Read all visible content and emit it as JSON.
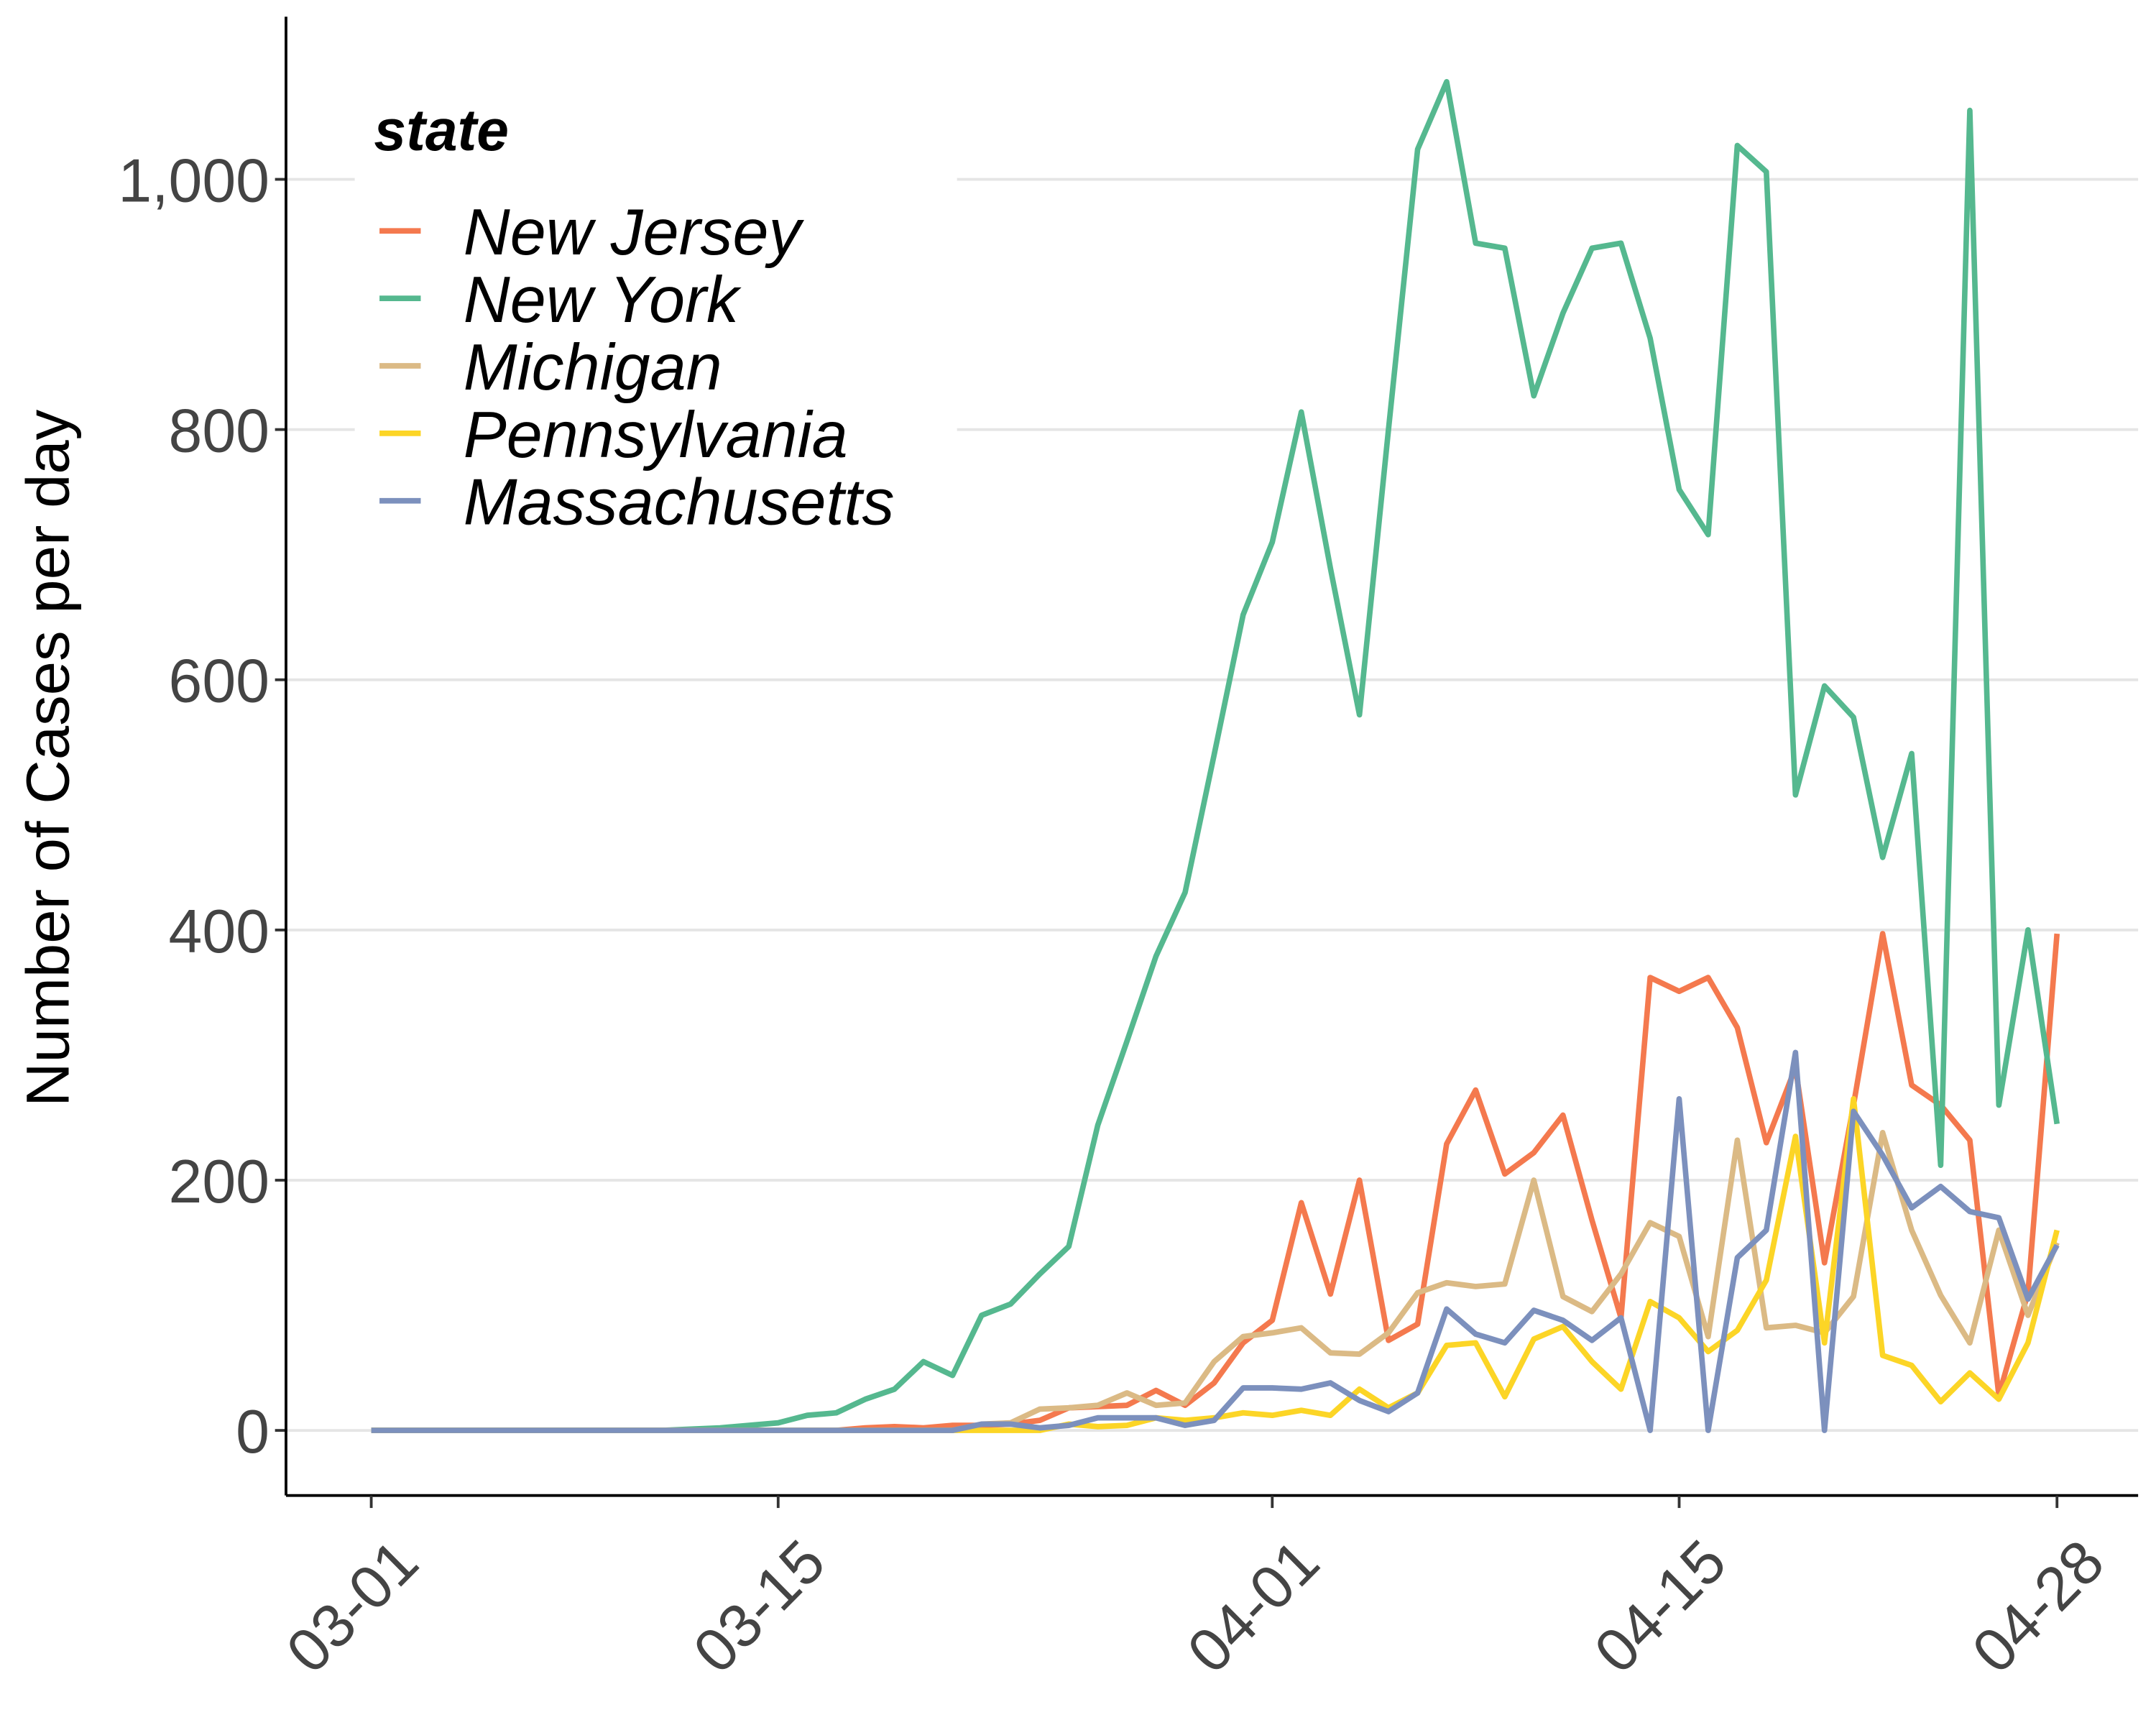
{
  "chart_data": {
    "type": "line",
    "y_label": "Number of Cases per day",
    "legend_title": "state",
    "legend": "top-left",
    "grid": true,
    "categories": [
      "03-01",
      "03-02",
      "03-03",
      "03-04",
      "03-05",
      "03-06",
      "03-07",
      "03-08",
      "03-09",
      "03-10",
      "03-11",
      "03-12",
      "03-13",
      "03-14",
      "03-15",
      "03-16",
      "03-17",
      "03-18",
      "03-19",
      "03-20",
      "03-21",
      "03-22",
      "03-23",
      "03-24",
      "03-25",
      "03-26",
      "03-27",
      "03-28",
      "03-29",
      "03-30",
      "03-31",
      "04-01",
      "04-02",
      "04-03",
      "04-04",
      "04-05",
      "04-06",
      "04-07",
      "04-08",
      "04-09",
      "04-10",
      "04-11",
      "04-12",
      "04-13",
      "04-14",
      "04-15",
      "04-16",
      "04-17",
      "04-18",
      "04-19",
      "04-20",
      "04-21",
      "04-22",
      "04-23",
      "04-24",
      "04-25",
      "04-26",
      "04-27",
      "04-28"
    ],
    "xticks": [
      "03-01",
      "03-15",
      "04-01",
      "04-15",
      "04-28"
    ],
    "ylim": [
      -52,
      1130
    ],
    "yticks": [
      0,
      200,
      400,
      600,
      800,
      {
        "value": 1000,
        "label": "1,000"
      }
    ],
    "series": [
      {
        "name": "New Jersey",
        "color": "#f4794e",
        "values": [
          0,
          0,
          0,
          0,
          0,
          0,
          0,
          0,
          0,
          0,
          0,
          0,
          0,
          0,
          0,
          0,
          0,
          2,
          3,
          2,
          4,
          4,
          5,
          8,
          18,
          19,
          20,
          32,
          20,
          38,
          70,
          88,
          182,
          109,
          200,
          72,
          85,
          229,
          272,
          205,
          222,
          252,
          168,
          90,
          362,
          351,
          362,
          322,
          230,
          290,
          134,
          260,
          397,
          276,
          260,
          232,
          28,
          110,
          397
        ]
      },
      {
        "name": "New York",
        "color": "#55b88f",
        "values": [
          0,
          0,
          0,
          0,
          0,
          0,
          0,
          0,
          0,
          0,
          0,
          1,
          2,
          4,
          6,
          12,
          14,
          25,
          33,
          55,
          44,
          92,
          101,
          125,
          147,
          244,
          311,
          379,
          430,
          540,
          652,
          710,
          814,
          689,
          572,
          800,
          1024,
          1078,
          949,
          945,
          827,
          893,
          945,
          949,
          873,
          752,
          716,
          1027,
          1006,
          508,
          595,
          570,
          458,
          541,
          212,
          1055,
          260,
          400,
          245
        ]
      },
      {
        "name": "Michigan",
        "color": "#dbba85",
        "values": [
          0,
          0,
          0,
          0,
          0,
          0,
          0,
          0,
          0,
          0,
          0,
          0,
          0,
          0,
          0,
          0,
          0,
          0,
          0,
          0,
          0,
          5,
          6,
          17,
          18,
          20,
          30,
          20,
          22,
          55,
          75,
          78,
          82,
          62,
          61,
          78,
          110,
          118,
          115,
          117,
          200,
          107,
          95,
          125,
          166,
          155,
          75,
          232,
          82,
          84,
          78,
          107,
          238,
          160,
          108,
          70,
          160,
          92,
          150
        ]
      },
      {
        "name": "Pennsylvania",
        "color": "#fcd526",
        "values": [
          0,
          0,
          0,
          0,
          0,
          0,
          0,
          0,
          0,
          0,
          0,
          0,
          0,
          0,
          0,
          0,
          0,
          0,
          0,
          0,
          0,
          0,
          0,
          0,
          5,
          3,
          4,
          10,
          8,
          10,
          14,
          12,
          16,
          12,
          33,
          18,
          30,
          68,
          70,
          27,
          73,
          83,
          55,
          33,
          103,
          90,
          63,
          80,
          120,
          235,
          70,
          265,
          60,
          52,
          23,
          46,
          25,
          70,
          160
        ]
      },
      {
        "name": "Massachusetts",
        "color": "#7c90bd",
        "values": [
          0,
          0,
          0,
          0,
          0,
          0,
          0,
          0,
          0,
          0,
          0,
          0,
          0,
          0,
          0,
          0,
          0,
          0,
          0,
          0,
          0,
          5,
          5,
          2,
          4,
          10,
          10,
          10,
          4,
          8,
          34,
          34,
          33,
          38,
          24,
          15,
          30,
          97,
          77,
          70,
          96,
          88,
          72,
          90,
          0,
          265,
          0,
          138,
          160,
          302,
          0,
          255,
          220,
          178,
          195,
          175,
          170,
          105,
          148
        ]
      }
    ]
  }
}
